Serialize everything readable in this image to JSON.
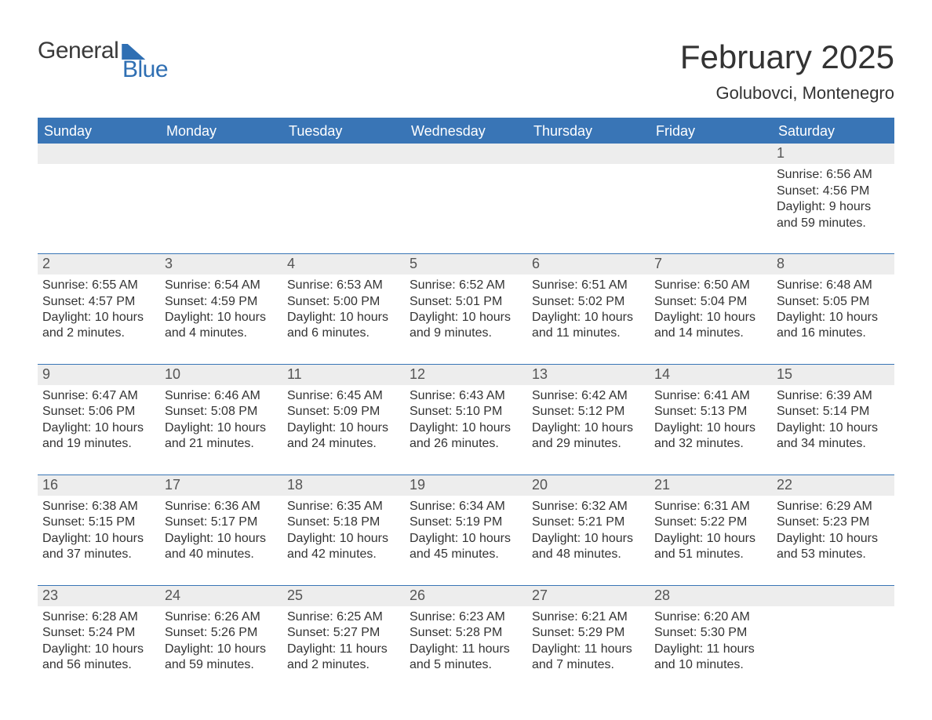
{
  "logo": {
    "line1": "General",
    "line2": "Blue",
    "brand_color": "#2f6fb3",
    "text_color": "#3a3a3a"
  },
  "title": "February 2025",
  "location": "Golubovci, Montenegro",
  "colors": {
    "header_bg": "#3975b6",
    "header_text": "#ffffff",
    "daynum_bg": "#ededed",
    "daynum_text": "#555555",
    "body_text": "#333333",
    "separator": "#3975b6",
    "page_bg": "#ffffff"
  },
  "typography": {
    "title_fontsize": 42,
    "location_fontsize": 22,
    "dow_fontsize": 18,
    "daynum_fontsize": 18,
    "detail_fontsize": 16
  },
  "days_of_week": [
    "Sunday",
    "Monday",
    "Tuesday",
    "Wednesday",
    "Thursday",
    "Friday",
    "Saturday"
  ],
  "weeks": [
    [
      null,
      null,
      null,
      null,
      null,
      null,
      {
        "n": "1",
        "sunrise": "Sunrise: 6:56 AM",
        "sunset": "Sunset: 4:56 PM",
        "daylight": "Daylight: 9 hours and 59 minutes."
      }
    ],
    [
      {
        "n": "2",
        "sunrise": "Sunrise: 6:55 AM",
        "sunset": "Sunset: 4:57 PM",
        "daylight": "Daylight: 10 hours and 2 minutes."
      },
      {
        "n": "3",
        "sunrise": "Sunrise: 6:54 AM",
        "sunset": "Sunset: 4:59 PM",
        "daylight": "Daylight: 10 hours and 4 minutes."
      },
      {
        "n": "4",
        "sunrise": "Sunrise: 6:53 AM",
        "sunset": "Sunset: 5:00 PM",
        "daylight": "Daylight: 10 hours and 6 minutes."
      },
      {
        "n": "5",
        "sunrise": "Sunrise: 6:52 AM",
        "sunset": "Sunset: 5:01 PM",
        "daylight": "Daylight: 10 hours and 9 minutes."
      },
      {
        "n": "6",
        "sunrise": "Sunrise: 6:51 AM",
        "sunset": "Sunset: 5:02 PM",
        "daylight": "Daylight: 10 hours and 11 minutes."
      },
      {
        "n": "7",
        "sunrise": "Sunrise: 6:50 AM",
        "sunset": "Sunset: 5:04 PM",
        "daylight": "Daylight: 10 hours and 14 minutes."
      },
      {
        "n": "8",
        "sunrise": "Sunrise: 6:48 AM",
        "sunset": "Sunset: 5:05 PM",
        "daylight": "Daylight: 10 hours and 16 minutes."
      }
    ],
    [
      {
        "n": "9",
        "sunrise": "Sunrise: 6:47 AM",
        "sunset": "Sunset: 5:06 PM",
        "daylight": "Daylight: 10 hours and 19 minutes."
      },
      {
        "n": "10",
        "sunrise": "Sunrise: 6:46 AM",
        "sunset": "Sunset: 5:08 PM",
        "daylight": "Daylight: 10 hours and 21 minutes."
      },
      {
        "n": "11",
        "sunrise": "Sunrise: 6:45 AM",
        "sunset": "Sunset: 5:09 PM",
        "daylight": "Daylight: 10 hours and 24 minutes."
      },
      {
        "n": "12",
        "sunrise": "Sunrise: 6:43 AM",
        "sunset": "Sunset: 5:10 PM",
        "daylight": "Daylight: 10 hours and 26 minutes."
      },
      {
        "n": "13",
        "sunrise": "Sunrise: 6:42 AM",
        "sunset": "Sunset: 5:12 PM",
        "daylight": "Daylight: 10 hours and 29 minutes."
      },
      {
        "n": "14",
        "sunrise": "Sunrise: 6:41 AM",
        "sunset": "Sunset: 5:13 PM",
        "daylight": "Daylight: 10 hours and 32 minutes."
      },
      {
        "n": "15",
        "sunrise": "Sunrise: 6:39 AM",
        "sunset": "Sunset: 5:14 PM",
        "daylight": "Daylight: 10 hours and 34 minutes."
      }
    ],
    [
      {
        "n": "16",
        "sunrise": "Sunrise: 6:38 AM",
        "sunset": "Sunset: 5:15 PM",
        "daylight": "Daylight: 10 hours and 37 minutes."
      },
      {
        "n": "17",
        "sunrise": "Sunrise: 6:36 AM",
        "sunset": "Sunset: 5:17 PM",
        "daylight": "Daylight: 10 hours and 40 minutes."
      },
      {
        "n": "18",
        "sunrise": "Sunrise: 6:35 AM",
        "sunset": "Sunset: 5:18 PM",
        "daylight": "Daylight: 10 hours and 42 minutes."
      },
      {
        "n": "19",
        "sunrise": "Sunrise: 6:34 AM",
        "sunset": "Sunset: 5:19 PM",
        "daylight": "Daylight: 10 hours and 45 minutes."
      },
      {
        "n": "20",
        "sunrise": "Sunrise: 6:32 AM",
        "sunset": "Sunset: 5:21 PM",
        "daylight": "Daylight: 10 hours and 48 minutes."
      },
      {
        "n": "21",
        "sunrise": "Sunrise: 6:31 AM",
        "sunset": "Sunset: 5:22 PM",
        "daylight": "Daylight: 10 hours and 51 minutes."
      },
      {
        "n": "22",
        "sunrise": "Sunrise: 6:29 AM",
        "sunset": "Sunset: 5:23 PM",
        "daylight": "Daylight: 10 hours and 53 minutes."
      }
    ],
    [
      {
        "n": "23",
        "sunrise": "Sunrise: 6:28 AM",
        "sunset": "Sunset: 5:24 PM",
        "daylight": "Daylight: 10 hours and 56 minutes."
      },
      {
        "n": "24",
        "sunrise": "Sunrise: 6:26 AM",
        "sunset": "Sunset: 5:26 PM",
        "daylight": "Daylight: 10 hours and 59 minutes."
      },
      {
        "n": "25",
        "sunrise": "Sunrise: 6:25 AM",
        "sunset": "Sunset: 5:27 PM",
        "daylight": "Daylight: 11 hours and 2 minutes."
      },
      {
        "n": "26",
        "sunrise": "Sunrise: 6:23 AM",
        "sunset": "Sunset: 5:28 PM",
        "daylight": "Daylight: 11 hours and 5 minutes."
      },
      {
        "n": "27",
        "sunrise": "Sunrise: 6:21 AM",
        "sunset": "Sunset: 5:29 PM",
        "daylight": "Daylight: 11 hours and 7 minutes."
      },
      {
        "n": "28",
        "sunrise": "Sunrise: 6:20 AM",
        "sunset": "Sunset: 5:30 PM",
        "daylight": "Daylight: 11 hours and 10 minutes."
      },
      null
    ]
  ]
}
